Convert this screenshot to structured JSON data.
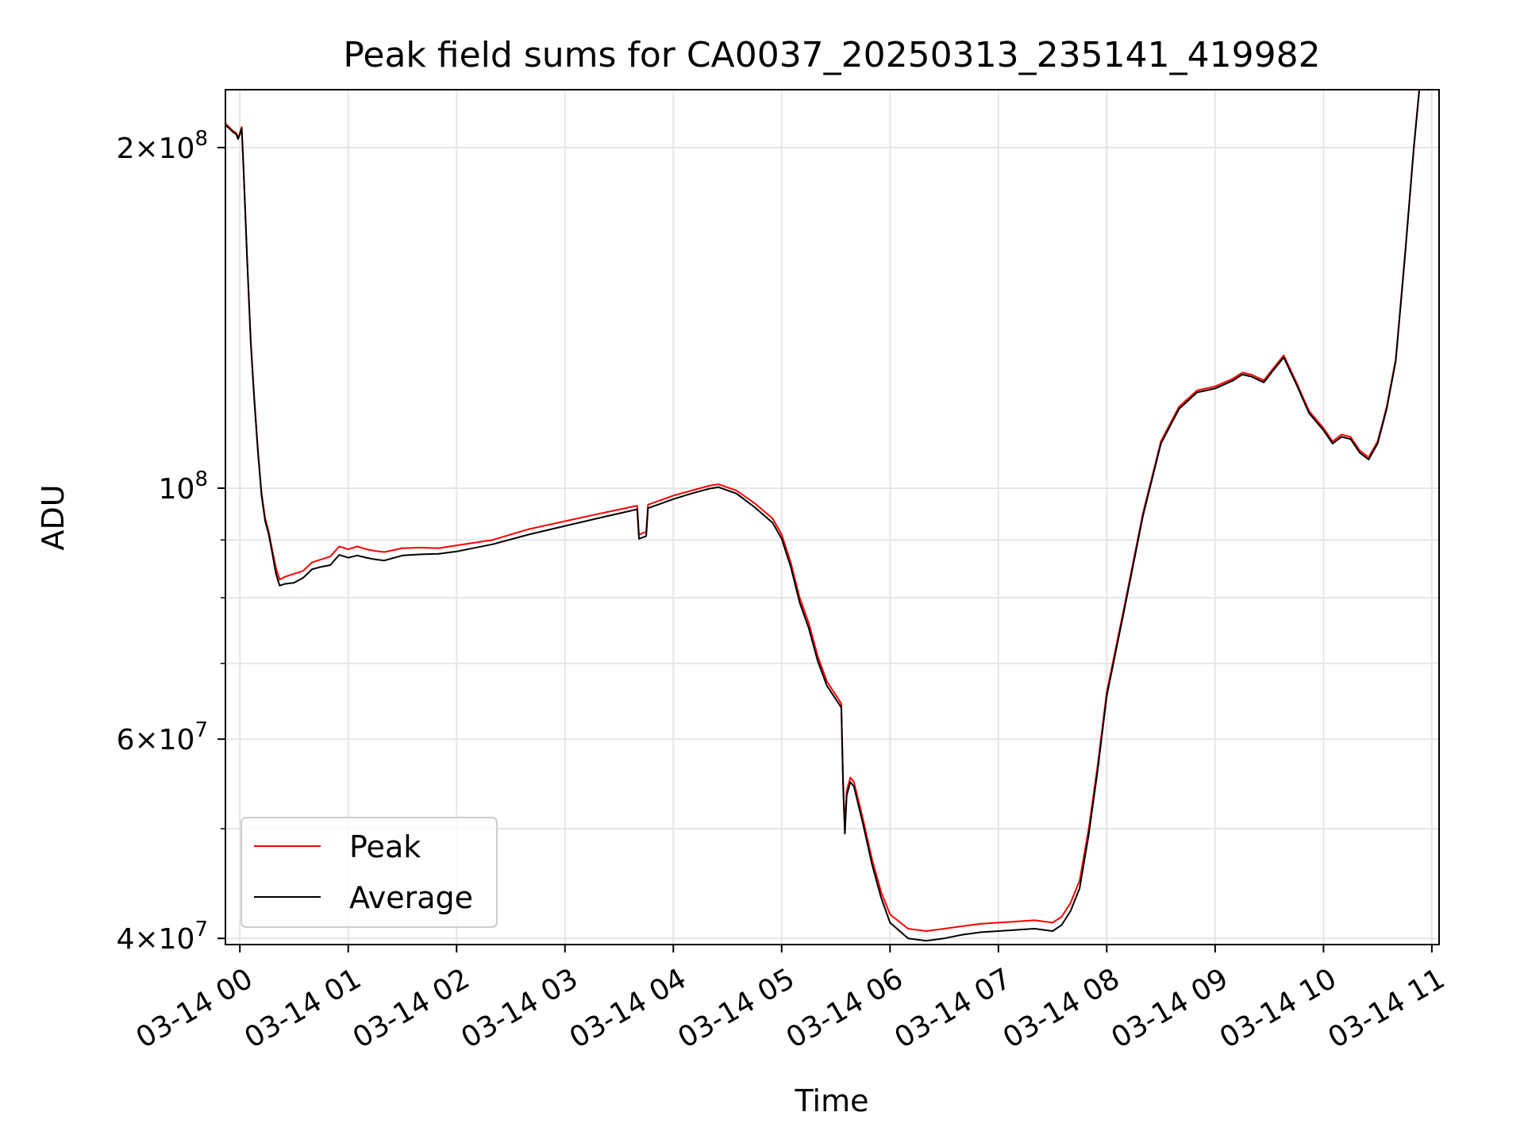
{
  "chart_data": {
    "type": "line",
    "title": "Peak field sums for CA0037_20250313_235141_419982",
    "xlabel": "Time",
    "ylabel": "ADU",
    "y_scale": "log",
    "xlim": [
      "2025-03-13 23:52",
      "2025-03-14 11:04"
    ],
    "ylim": [
      39500000,
      225000000
    ],
    "grid": true,
    "legend_position": "lower-left",
    "x_ticks": [
      {
        "t": "2025-03-14 00:00",
        "label": "03-14 00"
      },
      {
        "t": "2025-03-14 01:00",
        "label": "03-14 01"
      },
      {
        "t": "2025-03-14 02:00",
        "label": "03-14 02"
      },
      {
        "t": "2025-03-14 03:00",
        "label": "03-14 03"
      },
      {
        "t": "2025-03-14 04:00",
        "label": "03-14 04"
      },
      {
        "t": "2025-03-14 05:00",
        "label": "03-14 05"
      },
      {
        "t": "2025-03-14 06:00",
        "label": "03-14 06"
      },
      {
        "t": "2025-03-14 07:00",
        "label": "03-14 07"
      },
      {
        "t": "2025-03-14 08:00",
        "label": "03-14 08"
      },
      {
        "t": "2025-03-14 09:00",
        "label": "03-14 09"
      },
      {
        "t": "2025-03-14 10:00",
        "label": "03-14 10"
      },
      {
        "t": "2025-03-14 11:00",
        "label": "03-14 11"
      }
    ],
    "y_major_ticks": [
      {
        "value": 40000000,
        "base": "4",
        "exp": "7"
      },
      {
        "value": 60000000,
        "base": "6",
        "exp": "7"
      },
      {
        "value": 100000000,
        "base": "",
        "exp": "8"
      },
      {
        "value": 200000000,
        "base": "2",
        "exp": "8"
      }
    ],
    "y_minor_ticks": [
      50000000,
      70000000,
      80000000,
      90000000
    ],
    "series": [
      {
        "name": "Peak",
        "color": "#ff0000",
        "points": [
          [
            "2025-03-13 23:52",
            210000000
          ],
          [
            "2025-03-13 23:54",
            208500000
          ],
          [
            "2025-03-13 23:56",
            207000000
          ],
          [
            "2025-03-13 23:58",
            206000000
          ],
          [
            "2025-03-13 23:59",
            204000000
          ],
          [
            "2025-03-14 00:00",
            206000000
          ],
          [
            "2025-03-14 00:01",
            208500000
          ],
          [
            "2025-03-14 00:02",
            192000000
          ],
          [
            "2025-03-14 00:04",
            160000000
          ],
          [
            "2025-03-14 00:06",
            135000000
          ],
          [
            "2025-03-14 00:08",
            120000000
          ],
          [
            "2025-03-14 00:10",
            108000000
          ],
          [
            "2025-03-14 00:12",
            99000000
          ],
          [
            "2025-03-14 00:14",
            94000000
          ],
          [
            "2025-03-14 00:16",
            91500000
          ],
          [
            "2025-03-14 00:18",
            88000000
          ],
          [
            "2025-03-14 00:20",
            85000000
          ],
          [
            "2025-03-14 00:22",
            83000000
          ],
          [
            "2025-03-14 00:25",
            83500000
          ],
          [
            "2025-03-14 00:30",
            84000000
          ],
          [
            "2025-03-14 00:35",
            84500000
          ],
          [
            "2025-03-14 00:40",
            86000000
          ],
          [
            "2025-03-14 00:45",
            86500000
          ],
          [
            "2025-03-14 00:50",
            87000000
          ],
          [
            "2025-03-14 00:55",
            88800000
          ],
          [
            "2025-03-14 01:00",
            88300000
          ],
          [
            "2025-03-14 01:05",
            88800000
          ],
          [
            "2025-03-14 01:10",
            88300000
          ],
          [
            "2025-03-14 01:15",
            88000000
          ],
          [
            "2025-03-14 01:20",
            87800000
          ],
          [
            "2025-03-14 01:30",
            88500000
          ],
          [
            "2025-03-14 01:40",
            88600000
          ],
          [
            "2025-03-14 01:50",
            88500000
          ],
          [
            "2025-03-14 02:00",
            89000000
          ],
          [
            "2025-03-14 02:20",
            90000000
          ],
          [
            "2025-03-14 02:40",
            92000000
          ],
          [
            "2025-03-14 03:00",
            93500000
          ],
          [
            "2025-03-14 03:20",
            95000000
          ],
          [
            "2025-03-14 03:40",
            96500000
          ],
          [
            "2025-03-14 03:41",
            91000000
          ],
          [
            "2025-03-14 03:45",
            91500000
          ],
          [
            "2025-03-14 03:46",
            96700000
          ],
          [
            "2025-03-14 04:00",
            98500000
          ],
          [
            "2025-03-14 04:10",
            99500000
          ],
          [
            "2025-03-14 04:20",
            100500000
          ],
          [
            "2025-03-14 04:25",
            100800000
          ],
          [
            "2025-03-14 04:35",
            99500000
          ],
          [
            "2025-03-14 04:45",
            97000000
          ],
          [
            "2025-03-14 04:55",
            94000000
          ],
          [
            "2025-03-14 05:00",
            91000000
          ],
          [
            "2025-03-14 05:05",
            86000000
          ],
          [
            "2025-03-14 05:10",
            80000000
          ],
          [
            "2025-03-14 05:15",
            76000000
          ],
          [
            "2025-03-14 05:20",
            71000000
          ],
          [
            "2025-03-14 05:25",
            67500000
          ],
          [
            "2025-03-14 05:33",
            64500000
          ],
          [
            "2025-03-14 05:34",
            55000000
          ],
          [
            "2025-03-14 05:35",
            50000000
          ],
          [
            "2025-03-14 05:36",
            54000000
          ],
          [
            "2025-03-14 05:38",
            55500000
          ],
          [
            "2025-03-14 05:40",
            55000000
          ],
          [
            "2025-03-14 05:45",
            51000000
          ],
          [
            "2025-03-14 05:50",
            47000000
          ],
          [
            "2025-03-14 05:55",
            44000000
          ],
          [
            "2025-03-14 06:00",
            42000000
          ],
          [
            "2025-03-14 06:10",
            40800000
          ],
          [
            "2025-03-14 06:20",
            40600000
          ],
          [
            "2025-03-14 06:30",
            40800000
          ],
          [
            "2025-03-14 06:40",
            41000000
          ],
          [
            "2025-03-14 06:50",
            41200000
          ],
          [
            "2025-03-14 07:00",
            41300000
          ],
          [
            "2025-03-14 07:10",
            41400000
          ],
          [
            "2025-03-14 07:20",
            41500000
          ],
          [
            "2025-03-14 07:30",
            41300000
          ],
          [
            "2025-03-14 07:35",
            41800000
          ],
          [
            "2025-03-14 07:40",
            43000000
          ],
          [
            "2025-03-14 07:45",
            45000000
          ],
          [
            "2025-03-14 07:50",
            50000000
          ],
          [
            "2025-03-14 07:55",
            57000000
          ],
          [
            "2025-03-14 08:00",
            66000000
          ],
          [
            "2025-03-14 08:10",
            79000000
          ],
          [
            "2025-03-14 08:20",
            95000000
          ],
          [
            "2025-03-14 08:30",
            110000000
          ],
          [
            "2025-03-14 08:40",
            118000000
          ],
          [
            "2025-03-14 08:50",
            122000000
          ],
          [
            "2025-03-14 09:00",
            123000000
          ],
          [
            "2025-03-14 09:10",
            125000000
          ],
          [
            "2025-03-14 09:15",
            126500000
          ],
          [
            "2025-03-14 09:20",
            126000000
          ],
          [
            "2025-03-14 09:27",
            124500000
          ],
          [
            "2025-03-14 09:32",
            127500000
          ],
          [
            "2025-03-14 09:38",
            131000000
          ],
          [
            "2025-03-14 09:45",
            124000000
          ],
          [
            "2025-03-14 09:52",
            117000000
          ],
          [
            "2025-03-14 10:00",
            113000000
          ],
          [
            "2025-03-14 10:05",
            110000000
          ],
          [
            "2025-03-14 10:10",
            111500000
          ],
          [
            "2025-03-14 10:15",
            111000000
          ],
          [
            "2025-03-14 10:20",
            108000000
          ],
          [
            "2025-03-14 10:25",
            106500000
          ],
          [
            "2025-03-14 10:30",
            110000000
          ],
          [
            "2025-03-14 10:35",
            118000000
          ],
          [
            "2025-03-14 10:40",
            130000000
          ],
          [
            "2025-03-14 10:45",
            160000000
          ],
          [
            "2025-03-14 10:50",
            200000000
          ],
          [
            "2025-03-14 10:53",
            225000000
          ]
        ]
      },
      {
        "name": "Average",
        "color": "#000000",
        "points": [
          [
            "2025-03-13 23:52",
            209500000
          ],
          [
            "2025-03-13 23:54",
            208000000
          ],
          [
            "2025-03-13 23:56",
            206500000
          ],
          [
            "2025-03-13 23:58",
            205500000
          ],
          [
            "2025-03-13 23:59",
            203500000
          ],
          [
            "2025-03-14 00:00",
            205500000
          ],
          [
            "2025-03-14 00:01",
            208000000
          ],
          [
            "2025-03-14 00:02",
            191500000
          ],
          [
            "2025-03-14 00:04",
            159500000
          ],
          [
            "2025-03-14 00:06",
            134500000
          ],
          [
            "2025-03-14 00:08",
            119500000
          ],
          [
            "2025-03-14 00:10",
            107500000
          ],
          [
            "2025-03-14 00:12",
            98500000
          ],
          [
            "2025-03-14 00:14",
            93500000
          ],
          [
            "2025-03-14 00:16",
            91000000
          ],
          [
            "2025-03-14 00:18",
            87500000
          ],
          [
            "2025-03-14 00:20",
            84000000
          ],
          [
            "2025-03-14 00:22",
            82000000
          ],
          [
            "2025-03-14 00:25",
            82300000
          ],
          [
            "2025-03-14 00:30",
            82500000
          ],
          [
            "2025-03-14 00:35",
            83300000
          ],
          [
            "2025-03-14 00:40",
            84800000
          ],
          [
            "2025-03-14 00:45",
            85200000
          ],
          [
            "2025-03-14 00:50",
            85500000
          ],
          [
            "2025-03-14 00:55",
            87300000
          ],
          [
            "2025-03-14 01:00",
            86800000
          ],
          [
            "2025-03-14 01:05",
            87200000
          ],
          [
            "2025-03-14 01:10",
            86800000
          ],
          [
            "2025-03-14 01:15",
            86500000
          ],
          [
            "2025-03-14 01:20",
            86300000
          ],
          [
            "2025-03-14 01:30",
            87200000
          ],
          [
            "2025-03-14 01:40",
            87400000
          ],
          [
            "2025-03-14 01:50",
            87500000
          ],
          [
            "2025-03-14 02:00",
            87900000
          ],
          [
            "2025-03-14 02:20",
            89200000
          ],
          [
            "2025-03-14 02:40",
            91000000
          ],
          [
            "2025-03-14 03:00",
            92600000
          ],
          [
            "2025-03-14 03:20",
            94200000
          ],
          [
            "2025-03-14 03:40",
            95800000
          ],
          [
            "2025-03-14 03:41",
            90200000
          ],
          [
            "2025-03-14 03:45",
            90700000
          ],
          [
            "2025-03-14 03:46",
            96000000
          ],
          [
            "2025-03-14 04:00",
            97800000
          ],
          [
            "2025-03-14 04:10",
            98900000
          ],
          [
            "2025-03-14 04:20",
            99900000
          ],
          [
            "2025-03-14 04:25",
            100200000
          ],
          [
            "2025-03-14 04:35",
            98900000
          ],
          [
            "2025-03-14 04:45",
            96200000
          ],
          [
            "2025-03-14 04:55",
            93200000
          ],
          [
            "2025-03-14 05:00",
            90200000
          ],
          [
            "2025-03-14 05:05",
            85200000
          ],
          [
            "2025-03-14 05:10",
            79200000
          ],
          [
            "2025-03-14 05:15",
            75200000
          ],
          [
            "2025-03-14 05:20",
            70300000
          ],
          [
            "2025-03-14 05:25",
            66900000
          ],
          [
            "2025-03-14 05:33",
            64000000
          ],
          [
            "2025-03-14 05:34",
            54500000
          ],
          [
            "2025-03-14 05:35",
            49500000
          ],
          [
            "2025-03-14 05:36",
            53500000
          ],
          [
            "2025-03-14 05:38",
            55000000
          ],
          [
            "2025-03-14 05:40",
            54500000
          ],
          [
            "2025-03-14 05:45",
            50500000
          ],
          [
            "2025-03-14 05:50",
            46500000
          ],
          [
            "2025-03-14 05:55",
            43500000
          ],
          [
            "2025-03-14 06:00",
            41300000
          ],
          [
            "2025-03-14 06:10",
            40000000
          ],
          [
            "2025-03-14 06:20",
            39800000
          ],
          [
            "2025-03-14 06:30",
            40000000
          ],
          [
            "2025-03-14 06:40",
            40300000
          ],
          [
            "2025-03-14 06:50",
            40500000
          ],
          [
            "2025-03-14 07:00",
            40600000
          ],
          [
            "2025-03-14 07:10",
            40700000
          ],
          [
            "2025-03-14 07:20",
            40800000
          ],
          [
            "2025-03-14 07:30",
            40600000
          ],
          [
            "2025-03-14 07:35",
            41100000
          ],
          [
            "2025-03-14 07:40",
            42300000
          ],
          [
            "2025-03-14 07:45",
            44300000
          ],
          [
            "2025-03-14 07:50",
            49400000
          ],
          [
            "2025-03-14 07:55",
            56400000
          ],
          [
            "2025-03-14 08:00",
            65500000
          ],
          [
            "2025-03-14 08:10",
            78500000
          ],
          [
            "2025-03-14 08:20",
            94500000
          ],
          [
            "2025-03-14 08:30",
            109500000
          ],
          [
            "2025-03-14 08:40",
            117500000
          ],
          [
            "2025-03-14 08:50",
            121500000
          ],
          [
            "2025-03-14 09:00",
            122500000
          ],
          [
            "2025-03-14 09:10",
            124500000
          ],
          [
            "2025-03-14 09:15",
            126000000
          ],
          [
            "2025-03-14 09:20",
            125500000
          ],
          [
            "2025-03-14 09:27",
            124000000
          ],
          [
            "2025-03-14 09:32",
            127000000
          ],
          [
            "2025-03-14 09:38",
            130500000
          ],
          [
            "2025-03-14 09:45",
            123500000
          ],
          [
            "2025-03-14 09:52",
            116500000
          ],
          [
            "2025-03-14 10:00",
            112500000
          ],
          [
            "2025-03-14 10:05",
            109500000
          ],
          [
            "2025-03-14 10:10",
            111000000
          ],
          [
            "2025-03-14 10:15",
            110500000
          ],
          [
            "2025-03-14 10:20",
            107500000
          ],
          [
            "2025-03-14 10:25",
            106000000
          ],
          [
            "2025-03-14 10:30",
            109500000
          ],
          [
            "2025-03-14 10:35",
            117500000
          ],
          [
            "2025-03-14 10:40",
            129500000
          ],
          [
            "2025-03-14 10:45",
            159500000
          ],
          [
            "2025-03-14 10:50",
            199500000
          ],
          [
            "2025-03-14 10:53",
            224500000
          ]
        ]
      }
    ]
  }
}
